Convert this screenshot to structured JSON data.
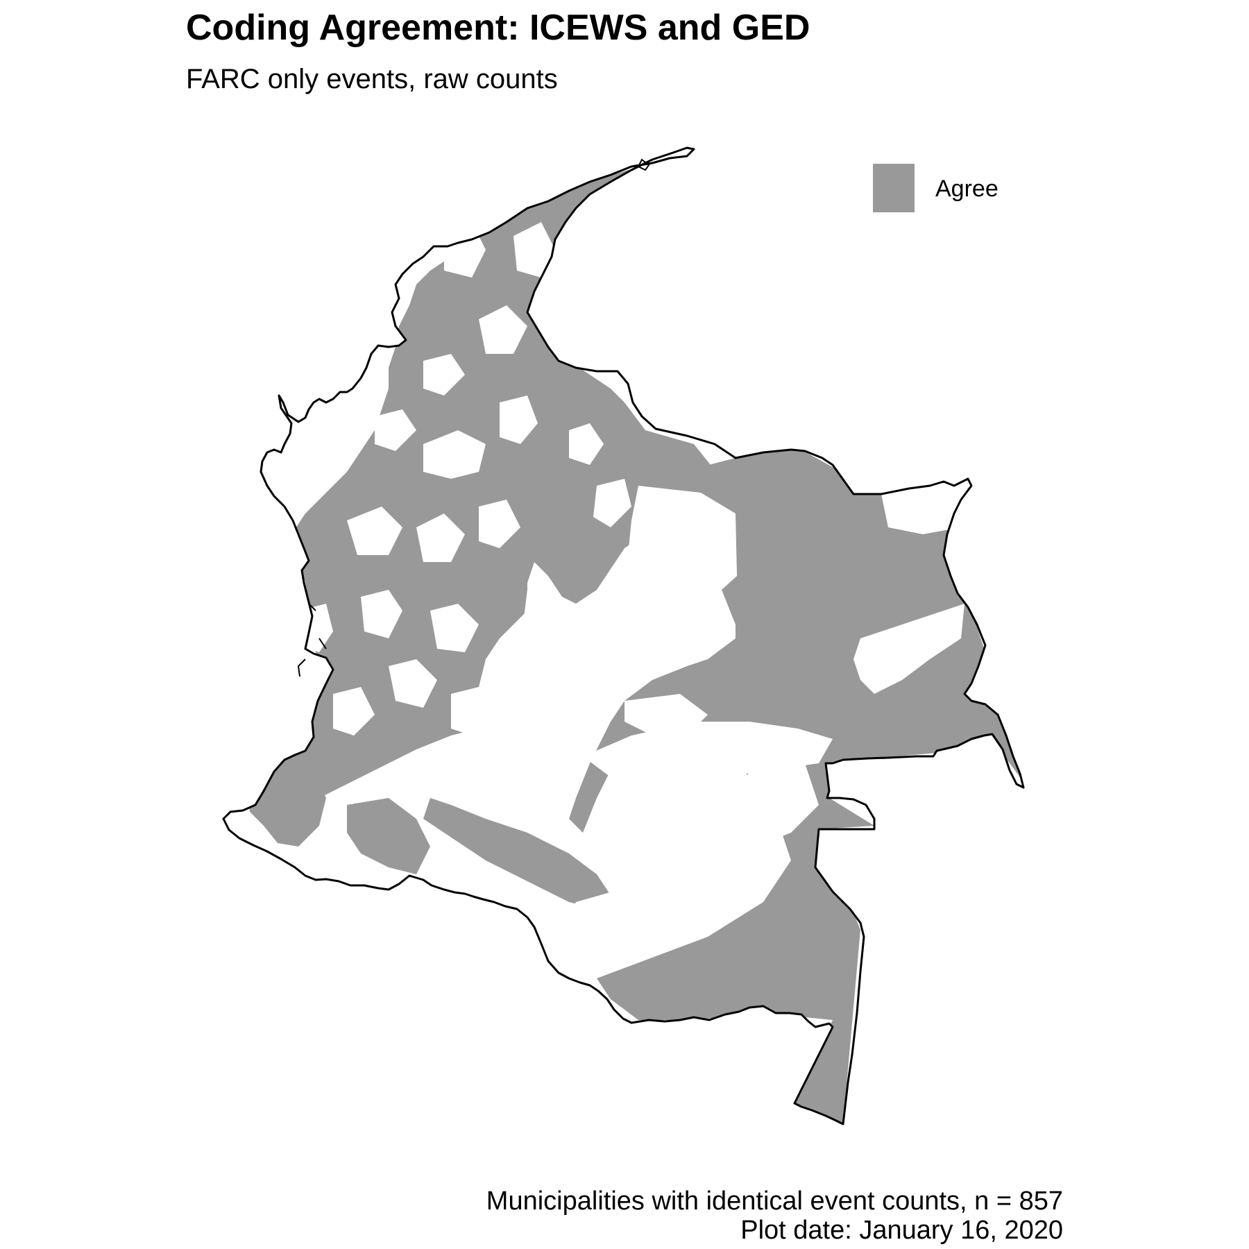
{
  "title": "Coding Agreement: ICEWS and GED",
  "subtitle": "FARC only events, raw counts",
  "legend": {
    "items": [
      {
        "label": "Agree",
        "color": "#999999"
      }
    ]
  },
  "map": {
    "region": "Colombia",
    "fill_color": "#999999",
    "border_color": "#000000",
    "background_color": "#ffffff"
  },
  "caption": {
    "line1": "Municipalities with identical event counts, n = 857",
    "line2": "Plot date: January 16, 2020"
  }
}
